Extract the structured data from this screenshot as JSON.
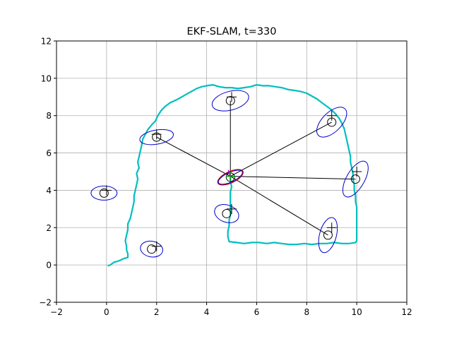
{
  "chart_data": {
    "type": "scatter",
    "title": "EKF-SLAM, t=330",
    "xlabel": "",
    "ylabel": "",
    "xlim": [
      -2,
      12
    ],
    "ylim": [
      -2,
      12
    ],
    "xticks": [
      "−2",
      "0",
      "2",
      "4",
      "6",
      "8",
      "10",
      "12"
    ],
    "yticks": [
      "−2",
      "0",
      "2",
      "4",
      "6",
      "8",
      "10",
      "12"
    ],
    "xtick_values": [
      -2,
      0,
      2,
      4,
      6,
      8,
      10,
      12
    ],
    "ytick_values": [
      -2,
      0,
      2,
      4,
      6,
      8,
      10,
      12
    ],
    "grid": true,
    "colors": {
      "trajectory": "#00bfbf",
      "estimate_ellipse": "#0000cc",
      "true_landmark": "#000000",
      "observation_line": "#000000",
      "robot_ellipse": "#cc0000",
      "robot_true": "#00aa00",
      "robot_heading": "#cc00cc"
    },
    "robot": {
      "true_pose": [
        4.95,
        4.75
      ],
      "estimate": [
        4.95,
        4.7
      ],
      "cov_ellipse": {
        "rx": 0.55,
        "ry": 0.3,
        "angle_deg": -25
      }
    },
    "trajectory": [
      [
        0.05,
        -0.05
      ],
      [
        0.15,
        0.0
      ],
      [
        0.3,
        0.15
      ],
      [
        0.45,
        0.2
      ],
      [
        0.55,
        0.25
      ],
      [
        0.7,
        0.35
      ],
      [
        0.85,
        0.4
      ],
      [
        0.85,
        0.6
      ],
      [
        0.8,
        0.8
      ],
      [
        0.8,
        1.0
      ],
      [
        0.75,
        1.3
      ],
      [
        0.8,
        1.6
      ],
      [
        0.85,
        1.9
      ],
      [
        0.85,
        2.2
      ],
      [
        0.95,
        2.5
      ],
      [
        1.0,
        2.8
      ],
      [
        1.05,
        3.1
      ],
      [
        1.1,
        3.4
      ],
      [
        1.1,
        3.7
      ],
      [
        1.15,
        4.0
      ],
      [
        1.2,
        4.3
      ],
      [
        1.25,
        4.6
      ],
      [
        1.2,
        4.9
      ],
      [
        1.3,
        5.2
      ],
      [
        1.25,
        5.5
      ],
      [
        1.3,
        5.8
      ],
      [
        1.35,
        6.1
      ],
      [
        1.4,
        6.4
      ],
      [
        1.45,
        6.75
      ],
      [
        1.55,
        7.0
      ],
      [
        1.65,
        7.25
      ],
      [
        1.8,
        7.5
      ],
      [
        1.95,
        7.7
      ],
      [
        2.05,
        8.0
      ],
      [
        2.2,
        8.3
      ],
      [
        2.35,
        8.5
      ],
      [
        2.55,
        8.7
      ],
      [
        2.8,
        8.85
      ],
      [
        3.0,
        9.0
      ],
      [
        3.2,
        9.15
      ],
      [
        3.4,
        9.3
      ],
      [
        3.6,
        9.45
      ],
      [
        3.8,
        9.55
      ],
      [
        4.0,
        9.6
      ],
      [
        4.25,
        9.65
      ],
      [
        4.5,
        9.55
      ],
      [
        4.75,
        9.5
      ],
      [
        5.0,
        9.5
      ],
      [
        5.25,
        9.45
      ],
      [
        5.5,
        9.5
      ],
      [
        5.75,
        9.55
      ],
      [
        6.0,
        9.65
      ],
      [
        6.25,
        9.6
      ],
      [
        6.5,
        9.6
      ],
      [
        6.75,
        9.55
      ],
      [
        7.0,
        9.5
      ],
      [
        7.25,
        9.4
      ],
      [
        7.5,
        9.35
      ],
      [
        7.75,
        9.3
      ],
      [
        8.0,
        9.2
      ],
      [
        8.2,
        9.05
      ],
      [
        8.4,
        8.9
      ],
      [
        8.6,
        8.7
      ],
      [
        8.8,
        8.5
      ],
      [
        9.0,
        8.3
      ],
      [
        9.15,
        8.1
      ],
      [
        9.3,
        7.85
      ],
      [
        9.4,
        7.6
      ],
      [
        9.5,
        7.3
      ],
      [
        9.55,
        7.0
      ],
      [
        9.6,
        6.7
      ],
      [
        9.65,
        6.4
      ],
      [
        9.7,
        6.1
      ],
      [
        9.75,
        5.8
      ],
      [
        9.75,
        5.5
      ],
      [
        9.8,
        5.2
      ],
      [
        9.85,
        4.9
      ],
      [
        9.85,
        4.6
      ],
      [
        9.9,
        4.3
      ],
      [
        9.9,
        4.0
      ],
      [
        9.95,
        3.7
      ],
      [
        9.95,
        3.4
      ],
      [
        10.0,
        3.1
      ],
      [
        10.0,
        2.8
      ],
      [
        10.0,
        2.5
      ],
      [
        10.0,
        2.2
      ],
      [
        10.0,
        1.9
      ],
      [
        10.0,
        1.6
      ],
      [
        10.0,
        1.3
      ],
      [
        9.95,
        1.2
      ],
      [
        9.7,
        1.15
      ],
      [
        9.4,
        1.15
      ],
      [
        9.1,
        1.2
      ],
      [
        8.8,
        1.15
      ],
      [
        8.5,
        1.15
      ],
      [
        8.2,
        1.1
      ],
      [
        7.9,
        1.15
      ],
      [
        7.6,
        1.1
      ],
      [
        7.3,
        1.1
      ],
      [
        7.0,
        1.15
      ],
      [
        6.7,
        1.2
      ],
      [
        6.4,
        1.15
      ],
      [
        6.1,
        1.2
      ],
      [
        5.8,
        1.2
      ],
      [
        5.5,
        1.15
      ],
      [
        5.2,
        1.2
      ],
      [
        4.9,
        1.25
      ],
      [
        4.85,
        1.5
      ],
      [
        4.85,
        1.8
      ],
      [
        4.9,
        2.1
      ],
      [
        4.9,
        2.4
      ],
      [
        4.95,
        2.7
      ],
      [
        4.95,
        3.0
      ],
      [
        4.95,
        3.3
      ],
      [
        4.95,
        3.6
      ],
      [
        4.95,
        3.9
      ],
      [
        5.0,
        4.2
      ],
      [
        4.95,
        4.5
      ],
      [
        4.95,
        4.75
      ]
    ],
    "landmarks": [
      {
        "true": [
          0.0,
          4.0
        ],
        "estimate": [
          -0.1,
          3.85
        ],
        "rx": 0.52,
        "ry": 0.38,
        "angle_deg": 0,
        "observed": false
      },
      {
        "true": [
          2.0,
          1.0
        ],
        "estimate": [
          1.8,
          0.85
        ],
        "rx": 0.45,
        "ry": 0.42,
        "angle_deg": 10,
        "observed": false
      },
      {
        "true": [
          2.0,
          7.0
        ],
        "estimate": [
          2.0,
          6.85
        ],
        "rx": 0.68,
        "ry": 0.38,
        "angle_deg": -10,
        "observed": true
      },
      {
        "true": [
          5.0,
          9.0
        ],
        "estimate": [
          4.95,
          8.8
        ],
        "rx": 0.75,
        "ry": 0.5,
        "angle_deg": -15,
        "observed": true
      },
      {
        "true": [
          9.0,
          8.0
        ],
        "estimate": [
          9.0,
          7.65
        ],
        "rx": 0.75,
        "ry": 0.52,
        "angle_deg": -45,
        "observed": true
      },
      {
        "true": [
          10.0,
          5.0
        ],
        "estimate": [
          9.95,
          4.6
        ],
        "rx": 0.8,
        "ry": 0.48,
        "angle_deg": -60,
        "observed": true
      },
      {
        "true": [
          5.0,
          3.0
        ],
        "estimate": [
          4.8,
          2.75
        ],
        "rx": 0.5,
        "ry": 0.46,
        "angle_deg": 20,
        "observed": false
      },
      {
        "true": [
          9.0,
          2.0
        ],
        "estimate": [
          8.85,
          1.6
        ],
        "rx": 0.72,
        "ry": 0.45,
        "angle_deg": -75,
        "observed": true
      }
    ]
  }
}
